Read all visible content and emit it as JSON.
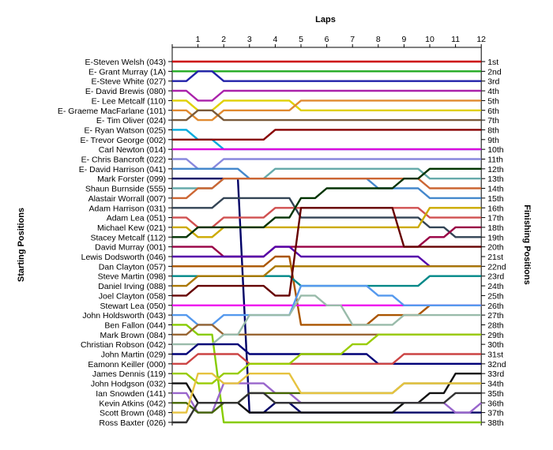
{
  "chart_data": {
    "type": "line",
    "title": "",
    "xlabel": "Laps",
    "ylabel_left": "Starting Positions",
    "ylabel_right": "Finishing Positions",
    "laps": [
      "1",
      "2",
      "3",
      "4",
      "5",
      "6",
      "7",
      "8",
      "9",
      "10",
      "11",
      "12"
    ],
    "x_range": [
      0,
      12
    ],
    "y_range": [
      1,
      38
    ],
    "y_inverted": true,
    "grid": false,
    "finishing_labels": [
      "1st",
      "2nd",
      "3rd",
      "4th",
      "5th",
      "6th",
      "7th",
      "8th",
      "9th",
      "10th",
      "11th",
      "12th",
      "13th",
      "14th",
      "15th",
      "16th",
      "17th",
      "18th",
      "19th",
      "20th",
      "21st",
      "22nd",
      "23rd",
      "24th",
      "25th",
      "26th",
      "27th",
      "28th",
      "29th",
      "30th",
      "31st",
      "32nd",
      "33rd",
      "34th",
      "35th",
      "36th",
      "37th",
      "38th"
    ],
    "series": [
      {
        "name": "E-Steven Welsh (043)",
        "color": "#cc0000",
        "values": [
          1,
          1,
          1,
          1,
          1,
          1,
          1,
          1,
          1,
          1,
          1,
          1,
          1
        ]
      },
      {
        "name": "E- Grant Murray (1A)",
        "color": "#22aa22",
        "values": [
          2,
          2,
          2,
          2,
          2,
          2,
          2,
          2,
          2,
          2,
          2,
          2,
          2
        ]
      },
      {
        "name": "E-Steve White (027)",
        "color": "#2222aa",
        "values": [
          3,
          2,
          3,
          3,
          3,
          3,
          3,
          3,
          3,
          3,
          3,
          3,
          3
        ]
      },
      {
        "name": "E- David Brewis (080)",
        "color": "#aa22aa",
        "values": [
          4,
          5,
          4,
          4,
          4,
          4,
          4,
          4,
          4,
          4,
          4,
          4,
          4
        ]
      },
      {
        "name": "E- Lee Metcalf (110)",
        "color": "#e0d000",
        "values": [
          5,
          6,
          5,
          5,
          5,
          6,
          6,
          6,
          6,
          6,
          6,
          6,
          6
        ]
      },
      {
        "name": "E- Graeme MacFarlane (101)",
        "color": "#e08a30",
        "values": [
          6,
          7,
          6,
          6,
          6,
          5,
          5,
          5,
          5,
          5,
          5,
          5,
          5
        ]
      },
      {
        "name": "E- Tim Oliver (024)",
        "color": "#7a5a3a",
        "values": [
          7,
          6,
          7,
          7,
          7,
          7,
          7,
          7,
          7,
          7,
          7,
          7,
          7
        ]
      },
      {
        "name": "E- Ryan Watson (025)",
        "color": "#00aadd",
        "values": [
          8,
          9,
          10,
          10,
          10,
          10,
          10,
          10,
          10,
          10,
          10,
          10,
          10
        ]
      },
      {
        "name": "E- Trevor George (002)",
        "color": "#880000",
        "values": [
          9,
          9,
          9,
          9,
          8,
          8,
          8,
          8,
          8,
          8,
          8,
          8,
          8
        ]
      },
      {
        "name": "Carl Newton (014)",
        "color": "#dd00dd",
        "values": [
          10,
          10,
          10,
          10,
          10,
          10,
          10,
          10,
          10,
          10,
          10,
          10,
          10
        ]
      },
      {
        "name": "E- Chris Bancroft (022)",
        "color": "#8888dd",
        "values": [
          11,
          12,
          11,
          11,
          11,
          11,
          11,
          11,
          11,
          11,
          11,
          11,
          11
        ]
      },
      {
        "name": "E- David Harrison (041)",
        "color": "#4488cc",
        "values": [
          12,
          12,
          12,
          13,
          13,
          13,
          13,
          13,
          14,
          14,
          15,
          15,
          15
        ]
      },
      {
        "name": "Mark Forster (099)",
        "color": "#000066",
        "values": [
          13,
          13,
          13,
          37,
          36,
          37,
          37,
          37,
          37,
          37,
          37,
          37,
          37
        ]
      },
      {
        "name": "Shaun Burnside (555)",
        "color": "#66aaaa",
        "values": [
          14,
          14,
          13,
          13,
          12,
          12,
          12,
          12,
          12,
          12,
          13,
          13,
          13
        ]
      },
      {
        "name": "Alastair Worrall (007)",
        "color": "#cc6633",
        "values": [
          15,
          14,
          13,
          13,
          13,
          13,
          13,
          13,
          13,
          13,
          14,
          14,
          14
        ]
      },
      {
        "name": "Adam Harrison (031)",
        "color": "#334455",
        "values": [
          16,
          16,
          15,
          15,
          15,
          17,
          17,
          17,
          17,
          17,
          18,
          19,
          19
        ]
      },
      {
        "name": "Adam Lea (051)",
        "color": "#d05050",
        "values": [
          17,
          18,
          17,
          17,
          16,
          16,
          16,
          16,
          16,
          16,
          17,
          17,
          17
        ]
      },
      {
        "name": "Michael Kew (021)",
        "color": "#ccaa00",
        "values": [
          18,
          19,
          18,
          18,
          18,
          18,
          18,
          18,
          18,
          18,
          16,
          16,
          16
        ]
      },
      {
        "name": "Stacey Metcalf (112)",
        "color": "#003300",
        "values": [
          19,
          18,
          18,
          18,
          17,
          15,
          14,
          14,
          14,
          13,
          12,
          12,
          12
        ]
      },
      {
        "name": "David Murray (001)",
        "color": "#990044",
        "values": [
          20,
          20,
          21,
          21,
          20,
          20,
          20,
          20,
          20,
          20,
          19,
          18,
          18
        ]
      },
      {
        "name": "Lewis Dodsworth (046)",
        "color": "#5500aa",
        "values": [
          21,
          21,
          21,
          21,
          20,
          21,
          21,
          21,
          21,
          21,
          22,
          22,
          22
        ]
      },
      {
        "name": "Dan Clayton (057)",
        "color": "#aa5500",
        "values": [
          22,
          22,
          22,
          22,
          21,
          28,
          28,
          28,
          27,
          27,
          26,
          26,
          26
        ]
      },
      {
        "name": "Steve Martin (098)",
        "color": "#008888",
        "values": [
          23,
          23,
          23,
          23,
          23,
          24,
          24,
          24,
          24,
          24,
          23,
          23,
          23
        ]
      },
      {
        "name": "Daniel Irving (088)",
        "color": "#aa7700",
        "values": [
          24,
          23,
          23,
          23,
          22,
          22,
          22,
          22,
          22,
          22,
          22,
          22,
          22
        ]
      },
      {
        "name": "Joel Clayton (058)",
        "color": "#660000",
        "values": [
          25,
          24,
          24,
          24,
          25,
          16,
          16,
          16,
          16,
          20,
          20,
          20,
          20
        ]
      },
      {
        "name": "Stewart Lea (050)",
        "color": "#ee00ee",
        "values": [
          26,
          26,
          26,
          26,
          26,
          26,
          26,
          26,
          26,
          26,
          26,
          26,
          26
        ]
      },
      {
        "name": "John Holdsworth (043)",
        "color": "#5599ee",
        "values": [
          27,
          28,
          27,
          27,
          27,
          24,
          24,
          24,
          25,
          26,
          26,
          26,
          26
        ]
      },
      {
        "name": "Ben Fallon (044)",
        "color": "#88cc00",
        "values": [
          28,
          29,
          38,
          38,
          38,
          38,
          38,
          38,
          38,
          38,
          38,
          38,
          38
        ]
      },
      {
        "name": "Mark Brown (084)",
        "color": "#996633",
        "values": [
          29,
          28,
          29,
          29,
          29,
          29,
          29,
          29,
          29,
          29,
          29,
          29,
          29
        ]
      },
      {
        "name": "Christian Robson (042)",
        "color": "#99bbaa",
        "values": [
          30,
          30,
          29,
          27,
          27,
          25,
          26,
          28,
          28,
          27,
          27,
          27,
          27
        ]
      },
      {
        "name": "John Martin (029)",
        "color": "#000077",
        "values": [
          31,
          30,
          30,
          31,
          31,
          31,
          31,
          31,
          32,
          32,
          32,
          32,
          32
        ]
      },
      {
        "name": "Eamonn Keiller (000)",
        "color": "#cc4444",
        "values": [
          32,
          31,
          31,
          32,
          32,
          32,
          32,
          32,
          32,
          31,
          31,
          31,
          31
        ]
      },
      {
        "name": "James Dennis (119)",
        "color": "#99cc00",
        "values": [
          33,
          34,
          33,
          32,
          32,
          31,
          31,
          30,
          29,
          29,
          29,
          29,
          29
        ]
      },
      {
        "name": "John Hodgson (032)",
        "color": "#111111",
        "values": [
          34,
          36,
          36,
          37,
          37,
          37,
          37,
          37,
          37,
          36,
          35,
          33,
          33
        ]
      },
      {
        "name": "Ian Snowden (141)",
        "color": "#9966cc",
        "values": [
          35,
          37,
          34,
          34,
          35,
          36,
          36,
          36,
          36,
          36,
          36,
          37,
          36
        ]
      },
      {
        "name": "Kevin Atkins (042)",
        "color": "#446600",
        "values": [
          36,
          37,
          36,
          35,
          35,
          35,
          35,
          35,
          35,
          34,
          34,
          34,
          34
        ]
      },
      {
        "name": "Scott Brown (048)",
        "color": "#e6c340",
        "values": [
          37,
          33,
          34,
          33,
          33,
          35,
          35,
          35,
          35,
          34,
          34,
          34,
          34
        ]
      },
      {
        "name": "Ross Baxter (026)",
        "color": "#333333",
        "values": [
          38,
          36,
          36,
          35,
          36,
          36,
          36,
          36,
          36,
          36,
          36,
          35,
          35
        ]
      }
    ]
  }
}
